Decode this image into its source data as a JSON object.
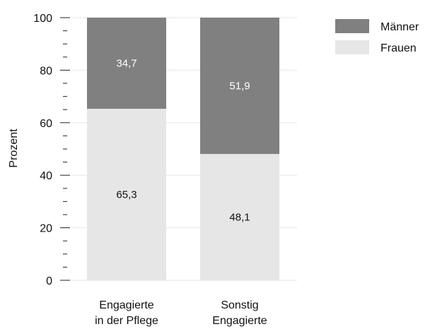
{
  "chart_data": {
    "type": "bar",
    "stacked": true,
    "categories": [
      [
        "Engagierte",
        "in der Pflege"
      ],
      [
        "Sonstig",
        "Engagierte"
      ]
    ],
    "series": [
      {
        "name": "Frauen",
        "values": [
          65.3,
          48.1
        ],
        "labels": [
          "65,3",
          "48,1"
        ],
        "color": "#e6e6e6",
        "label_color": "#111111"
      },
      {
        "name": "Männer",
        "values": [
          34.7,
          51.9
        ],
        "labels": [
          "34,7",
          "51,9"
        ],
        "color": "#808080",
        "label_color": "#ffffff"
      }
    ],
    "ylabel": "Prozent",
    "ylim": [
      0,
      100
    ],
    "yticks": [
      0,
      20,
      40,
      60,
      80,
      100
    ],
    "minor_tick_step": 5,
    "grid": true,
    "grid_color": "#e6e6e6",
    "legend": {
      "position": "top-right",
      "entries": [
        "Männer",
        "Frauen"
      ]
    }
  }
}
